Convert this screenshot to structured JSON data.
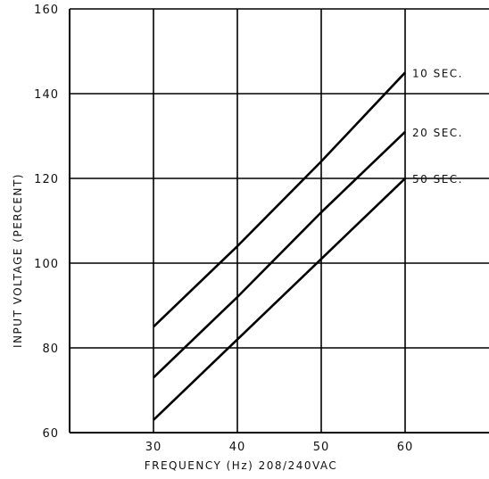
{
  "chart_data": {
    "type": "line",
    "title": "",
    "xlabel": "FREQUENCY (Hz) 208/240VAC",
    "ylabel": "INPUT VOLTAGE (PERCENT)",
    "xlim": [
      20,
      70
    ],
    "ylim": [
      60,
      160
    ],
    "x_ticks": [
      30,
      40,
      50,
      60
    ],
    "y_ticks": [
      60,
      80,
      100,
      120,
      140,
      160
    ],
    "x_tick_labels": [
      "30",
      "40",
      "50",
      "60"
    ],
    "y_tick_labels": [
      "60",
      "80",
      "100",
      "120",
      "140",
      "160"
    ],
    "grid": true,
    "series": [
      {
        "name": "10 SEC.",
        "x": [
          30,
          40,
          50,
          60
        ],
        "y": [
          85,
          104,
          124,
          145
        ]
      },
      {
        "name": "20 SEC.",
        "x": [
          30,
          40,
          50,
          60
        ],
        "y": [
          73,
          92,
          112,
          131
        ]
      },
      {
        "name": "50 SEC.",
        "x": [
          30,
          40,
          50,
          60
        ],
        "y": [
          63,
          82,
          101,
          120
        ]
      }
    ],
    "line_color": "#000000"
  }
}
